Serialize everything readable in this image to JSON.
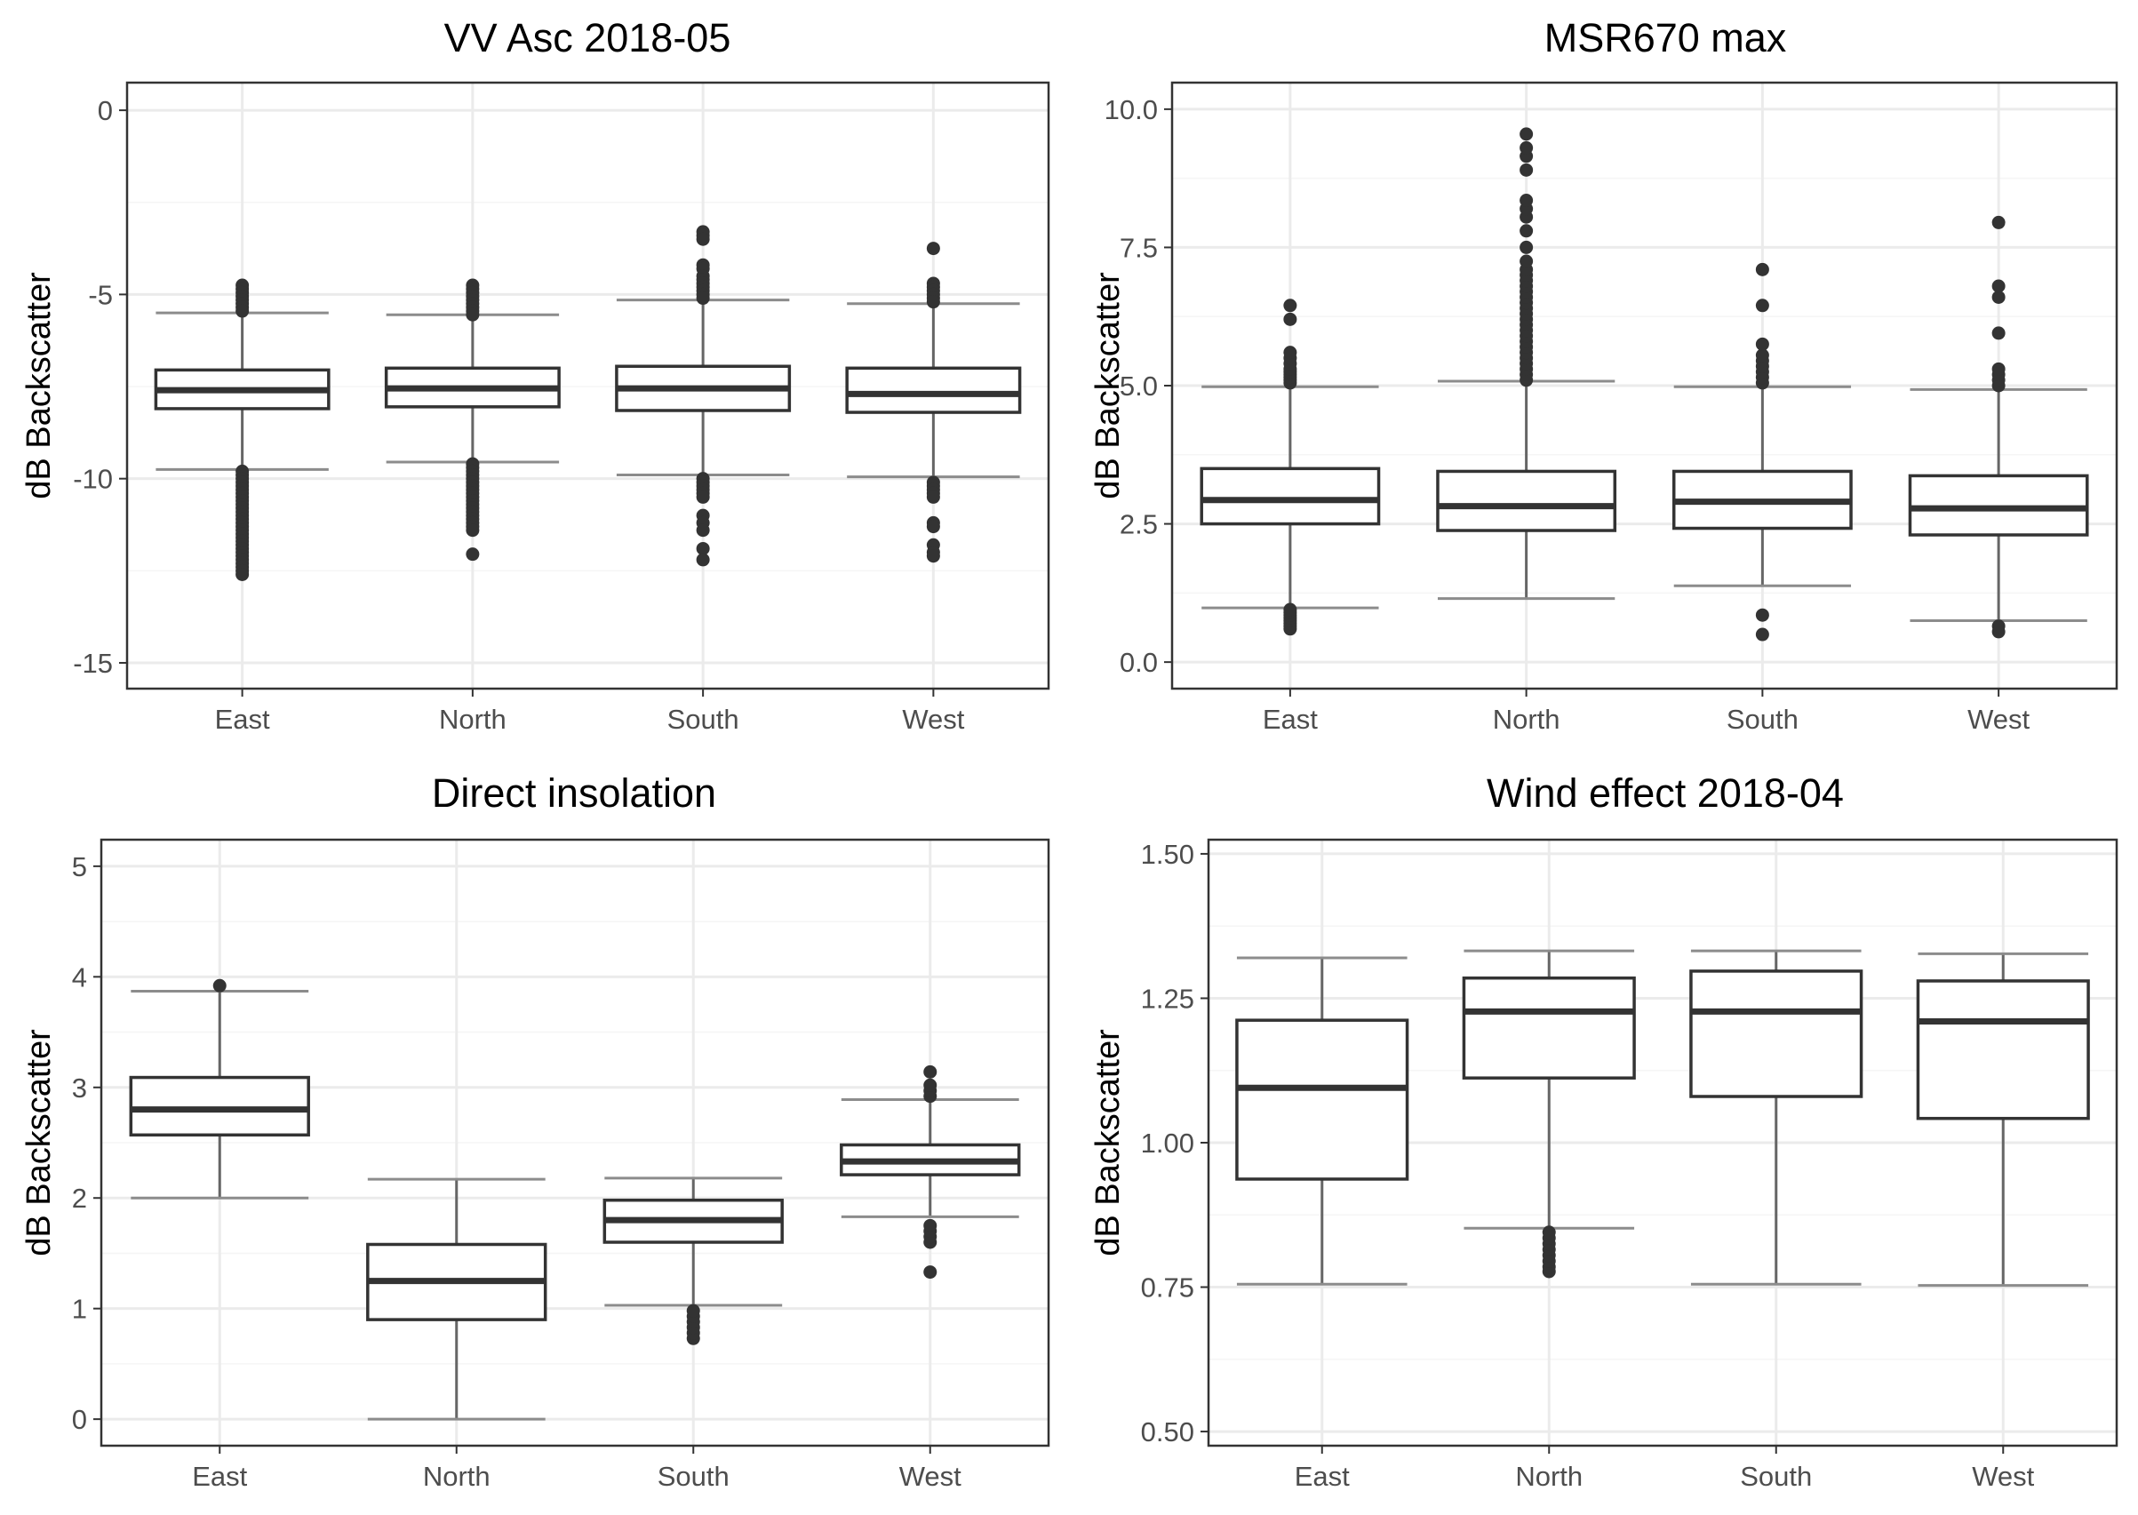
{
  "figure": {
    "background": "#ffffff"
  },
  "style": {
    "panel_background": "#ffffff",
    "panel_border": "#333333",
    "grid_major": "#ebebeb",
    "grid_minor": "#f5f5f5",
    "box_line": "#333333",
    "whisker": "#666666",
    "whisker_cap": "#8c8c8c",
    "outlier_fill": "#333333"
  },
  "chart_data": [
    {
      "type": "boxplot",
      "title": "VV Asc 2018-05",
      "ylabel": "dB Backscatter",
      "xlabel": "",
      "ylim": [
        -15.7,
        0.75
      ],
      "yticks": [
        0,
        -5,
        -10,
        -15
      ],
      "ytick_labels": [
        "0",
        "-5",
        "-10",
        "-15"
      ],
      "grid": true,
      "categories": [
        "East",
        "North",
        "South",
        "West"
      ],
      "boxes": [
        {
          "q1": -8.1,
          "median": -7.6,
          "q3": -7.05,
          "whisker_low": -9.75,
          "whisker_high": -5.5,
          "outliers": [
            -4.75,
            -4.85,
            -4.95,
            -5.05,
            -5.15,
            -5.25,
            -5.35,
            -5.45,
            -9.8,
            -9.9,
            -10.0,
            -10.1,
            -10.2,
            -10.3,
            -10.4,
            -10.5,
            -10.6,
            -10.7,
            -10.8,
            -10.9,
            -11.0,
            -11.1,
            -11.2,
            -11.3,
            -11.4,
            -11.5,
            -11.6,
            -11.7,
            -11.8,
            -11.9,
            -12.0,
            -12.1,
            -12.2,
            -12.3,
            -12.4,
            -12.5,
            -12.6
          ]
        },
        {
          "q1": -8.05,
          "median": -7.55,
          "q3": -7.0,
          "whisker_low": -9.55,
          "whisker_high": -5.55,
          "outliers": [
            -4.75,
            -4.85,
            -4.95,
            -5.05,
            -5.15,
            -5.25,
            -5.35,
            -5.45,
            -5.55,
            -9.6,
            -9.7,
            -9.8,
            -9.9,
            -10.0,
            -10.1,
            -10.2,
            -10.3,
            -10.4,
            -10.5,
            -10.6,
            -10.7,
            -10.8,
            -10.9,
            -11.0,
            -11.1,
            -11.2,
            -11.3,
            -11.4,
            -12.05
          ]
        },
        {
          "q1": -8.15,
          "median": -7.55,
          "q3": -6.95,
          "whisker_low": -9.9,
          "whisker_high": -5.15,
          "outliers": [
            -3.3,
            -3.4,
            -3.5,
            -4.2,
            -4.3,
            -4.5,
            -4.6,
            -4.7,
            -4.8,
            -4.9,
            -5.0,
            -5.1,
            -10.0,
            -10.1,
            -10.2,
            -10.3,
            -10.4,
            -10.5,
            -11.0,
            -11.2,
            -11.4,
            -11.9,
            -12.2
          ]
        },
        {
          "q1": -8.2,
          "median": -7.7,
          "q3": -7.0,
          "whisker_low": -9.95,
          "whisker_high": -5.25,
          "outliers": [
            -3.75,
            -4.7,
            -4.8,
            -4.9,
            -5.0,
            -5.1,
            -5.2,
            -10.1,
            -10.2,
            -10.3,
            -10.4,
            -10.5,
            -11.2,
            -11.3,
            -11.8,
            -12.0,
            -12.1
          ]
        }
      ]
    },
    {
      "type": "boxplot",
      "title": "MSR670 max",
      "ylabel": "dB Backscatter",
      "xlabel": "",
      "ylim": [
        -0.48,
        10.48
      ],
      "yticks": [
        0,
        2.5,
        5,
        7.5,
        10
      ],
      "ytick_labels": [
        "0.0",
        "2.5",
        "5.0",
        "7.5",
        "10.0"
      ],
      "grid": true,
      "categories": [
        "East",
        "North",
        "South",
        "West"
      ],
      "boxes": [
        {
          "q1": 2.5,
          "median": 2.93,
          "q3": 3.5,
          "whisker_low": 0.98,
          "whisker_high": 4.98,
          "outliers": [
            0.6,
            0.65,
            0.7,
            0.75,
            0.8,
            0.85,
            0.9,
            0.95,
            5.05,
            5.1,
            5.15,
            5.2,
            5.25,
            5.3,
            5.4,
            5.5,
            5.6,
            6.2,
            6.45
          ]
        },
        {
          "q1": 2.38,
          "median": 2.82,
          "q3": 3.45,
          "whisker_low": 1.15,
          "whisker_high": 5.08,
          "outliers": [
            5.1,
            5.2,
            5.3,
            5.4,
            5.5,
            5.6,
            5.7,
            5.8,
            5.9,
            6.0,
            6.1,
            6.2,
            6.3,
            6.4,
            6.5,
            6.6,
            6.7,
            6.8,
            6.9,
            7.0,
            7.1,
            7.25,
            7.5,
            7.8,
            8.05,
            8.2,
            8.35,
            8.9,
            9.15,
            9.3,
            9.55
          ]
        },
        {
          "q1": 2.42,
          "median": 2.9,
          "q3": 3.45,
          "whisker_low": 1.38,
          "whisker_high": 4.98,
          "outliers": [
            0.5,
            0.85,
            5.05,
            5.15,
            5.25,
            5.35,
            5.45,
            5.55,
            5.75,
            6.45,
            7.1
          ]
        },
        {
          "q1": 2.3,
          "median": 2.78,
          "q3": 3.37,
          "whisker_low": 0.75,
          "whisker_high": 4.93,
          "outliers": [
            0.55,
            0.65,
            5.0,
            5.1,
            5.2,
            5.3,
            5.95,
            6.6,
            6.8,
            7.95
          ]
        }
      ]
    },
    {
      "type": "boxplot",
      "title": "Direct insolation",
      "ylabel": "dB Backscatter",
      "xlabel": "",
      "ylim": [
        -0.24,
        5.24
      ],
      "yticks": [
        0,
        1,
        2,
        3,
        4,
        5
      ],
      "ytick_labels": [
        "0",
        "1",
        "2",
        "3",
        "4",
        "5"
      ],
      "grid": true,
      "categories": [
        "East",
        "North",
        "South",
        "West"
      ],
      "boxes": [
        {
          "q1": 2.57,
          "median": 2.8,
          "q3": 3.09,
          "whisker_low": 2.0,
          "whisker_high": 3.87,
          "outliers": [
            3.92
          ]
        },
        {
          "q1": 0.9,
          "median": 1.25,
          "q3": 1.58,
          "whisker_low": 0.0,
          "whisker_high": 2.17,
          "outliers": []
        },
        {
          "q1": 1.6,
          "median": 1.8,
          "q3": 1.98,
          "whisker_low": 1.03,
          "whisker_high": 2.18,
          "outliers": [
            0.73,
            0.78,
            0.83,
            0.88,
            0.93,
            0.98
          ]
        },
        {
          "q1": 2.21,
          "median": 2.33,
          "q3": 2.48,
          "whisker_low": 1.83,
          "whisker_high": 2.89,
          "outliers": [
            1.33,
            1.6,
            1.65,
            1.7,
            1.75,
            2.92,
            2.97,
            3.02,
            3.14
          ]
        }
      ]
    },
    {
      "type": "boxplot",
      "title": "Wind effect 2018-04",
      "ylabel": "dB Backscatter",
      "xlabel": "",
      "ylim": [
        0.4755,
        1.5245
      ],
      "yticks": [
        0.5,
        0.75,
        1.0,
        1.25,
        1.5
      ],
      "ytick_labels": [
        "0.50",
        "0.75",
        "1.00",
        "1.25",
        "1.50"
      ],
      "grid": true,
      "categories": [
        "East",
        "North",
        "South",
        "West"
      ],
      "boxes": [
        {
          "q1": 0.937,
          "median": 1.095,
          "q3": 1.212,
          "whisker_low": 0.755,
          "whisker_high": 1.32,
          "outliers": []
        },
        {
          "q1": 1.112,
          "median": 1.227,
          "q3": 1.285,
          "whisker_low": 0.852,
          "whisker_high": 1.332,
          "outliers": [
            0.777,
            0.785,
            0.795,
            0.805,
            0.815,
            0.825,
            0.835,
            0.845
          ]
        },
        {
          "q1": 1.08,
          "median": 1.227,
          "q3": 1.297,
          "whisker_low": 0.755,
          "whisker_high": 1.332,
          "outliers": []
        },
        {
          "q1": 1.042,
          "median": 1.21,
          "q3": 1.28,
          "whisker_low": 0.753,
          "whisker_high": 1.327,
          "outliers": []
        }
      ]
    }
  ]
}
